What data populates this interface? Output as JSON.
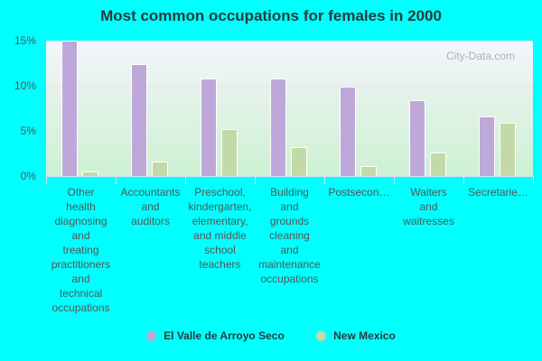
{
  "chart_data": {
    "type": "bar",
    "title": "Most common occupations for females in 2000",
    "xlabel": "",
    "ylabel": "",
    "ylim": [
      0,
      15
    ],
    "yticks": [
      "0%",
      "5%",
      "10%",
      "15%"
    ],
    "categories": [
      "Other health diagnosing and treating practitioners and technical occupations",
      "Accountants and auditors",
      "Preschool, kindergarten, elementary, and middle school teachers",
      "Building and grounds cleaning and maintenance occupations",
      "Postsecon...",
      "Waiters and waitresses",
      "Secretarie..."
    ],
    "category_labels_display": [
      "Other\nhealth\ndiagnosing\nand\ntreating\npractitioners\nand\ntechnical\noccupations",
      "Accountants\nand\nauditors",
      "Preschool,\nkindergarten,\nelementary,\nand middle\nschool\nteachers",
      "Building\nand\ngrounds\ncleaning\nand\nmaintenance\noccupations",
      "Postsecon…",
      "Waiters\nand\nwaitresses",
      "Secretarie…"
    ],
    "series": [
      {
        "name": "El Valle de Arroyo Seco",
        "color": "#bea8da",
        "values": [
          15.0,
          12.4,
          10.8,
          10.8,
          9.9,
          8.4,
          6.6
        ]
      },
      {
        "name": "New Mexico",
        "color": "#c4d9a8",
        "values": [
          0.5,
          1.6,
          5.2,
          3.2,
          1.1,
          2.6,
          5.9
        ]
      }
    ],
    "grid": true,
    "legend_position": "bottom"
  },
  "watermark": "City-Data.com"
}
